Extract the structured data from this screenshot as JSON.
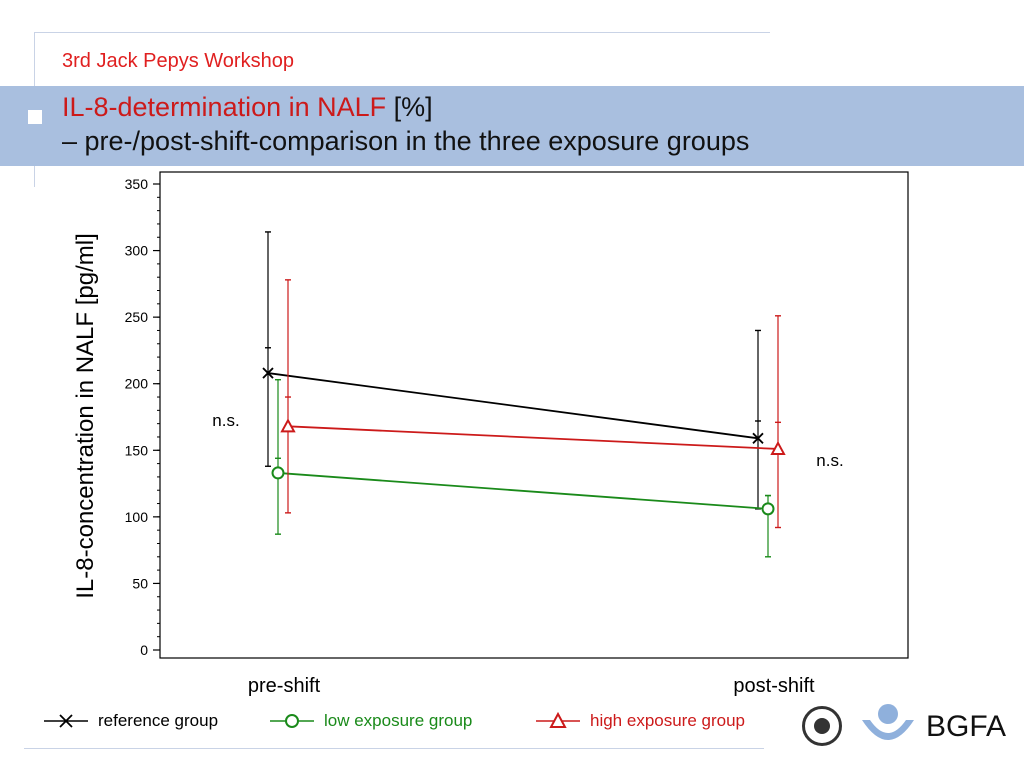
{
  "header": {
    "workshop": "3rd Jack Pepys Workshop",
    "title_red": "IL-8-determination in NALF",
    "title_suffix": " [%]",
    "subtitle": "– pre-/post-shift-comparison in the three exposure groups"
  },
  "chart_data": {
    "type": "line",
    "ylabel": "IL-8-concentration in NALF [pg/ml]",
    "xlabel": "",
    "categories": [
      "pre-shift",
      "post-shift"
    ],
    "ylim": [
      0,
      350
    ],
    "yticks": [
      0,
      50,
      100,
      150,
      200,
      250,
      300,
      350
    ],
    "grid": false,
    "legend_position": "bottom",
    "series": [
      {
        "name": "reference group",
        "color": "#000000",
        "marker": "x",
        "values": [
          208,
          159
        ],
        "upper": [
          314,
          240
        ],
        "upper_inner": [
          227,
          172
        ],
        "lower": [
          138,
          106
        ]
      },
      {
        "name": "low exposure group",
        "color": "#1a8a1a",
        "marker": "circle",
        "values": [
          133,
          106
        ],
        "upper": [
          203,
          116
        ],
        "upper_inner": [
          144,
          116
        ],
        "lower": [
          87,
          70
        ]
      },
      {
        "name": "high exposure group",
        "color": "#cc1a1a",
        "marker": "triangle",
        "values": [
          168,
          151
        ],
        "upper": [
          278,
          251
        ],
        "upper_inner": [
          190,
          171
        ],
        "lower": [
          103,
          92
        ]
      }
    ],
    "annotations": [
      "n.s.",
      "n.s."
    ]
  },
  "logos": {
    "bgfa": "BGFA"
  }
}
